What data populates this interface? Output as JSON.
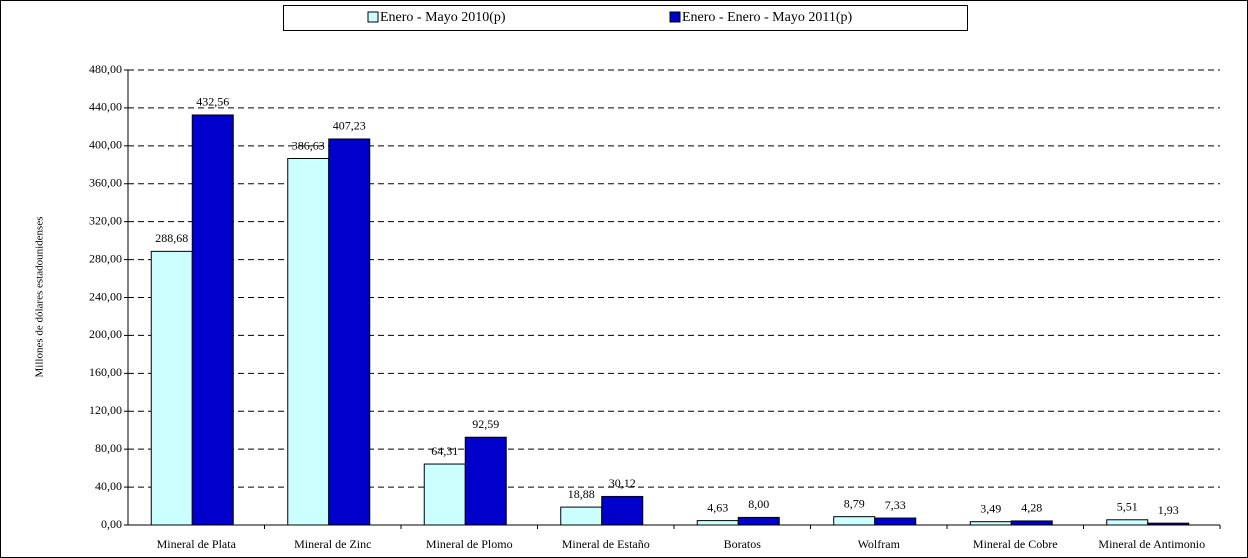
{
  "chart_data": {
    "type": "bar",
    "y_label": "Millones de dólares estadounidenses",
    "categories": [
      "Mineral de Plata",
      "Mineral de Zinc",
      "Mineral de Plomo",
      "Mineral de Estaño",
      "Boratos",
      "Wolfram",
      "Mineral de Cobre",
      "Mineral de Antimonio"
    ],
    "series": [
      {
        "name": "Enero - Mayo 2010(p)",
        "color": "#ccffff",
        "values": [
          288.68,
          386.63,
          64.31,
          18.88,
          4.63,
          8.79,
          3.49,
          5.51
        ],
        "value_labels": [
          "288,68",
          "386,63",
          "64,31",
          "18,88",
          "4,63",
          "8,79",
          "3,49",
          "5,51"
        ]
      },
      {
        "name": "Enero - Enero - Mayo 2011(p)",
        "color": "#0000cc",
        "values": [
          432.56,
          407.23,
          92.59,
          30.12,
          8.0,
          7.33,
          4.28,
          1.93
        ],
        "value_labels": [
          "432,56",
          "407,23",
          "92,59",
          "30,12",
          "8,00",
          "7,33",
          "4,28",
          "1,93"
        ]
      }
    ],
    "ylim": [
      0,
      480
    ],
    "yticks": [
      {
        "value": 0,
        "label": "0,00"
      },
      {
        "value": 40,
        "label": "40,00"
      },
      {
        "value": 80,
        "label": "80,00"
      },
      {
        "value": 120,
        "label": "120,00"
      },
      {
        "value": 160,
        "label": "160,00"
      },
      {
        "value": 200,
        "label": "200,00"
      },
      {
        "value": 240,
        "label": "240,00"
      },
      {
        "value": 280,
        "label": "280,00"
      },
      {
        "value": 320,
        "label": "320,00"
      },
      {
        "value": 360,
        "label": "360,00"
      },
      {
        "value": 400,
        "label": "400,00"
      },
      {
        "value": 440,
        "label": "440,00"
      },
      {
        "value": 480,
        "label": "480,00"
      }
    ],
    "grid": true,
    "legend": "top"
  }
}
